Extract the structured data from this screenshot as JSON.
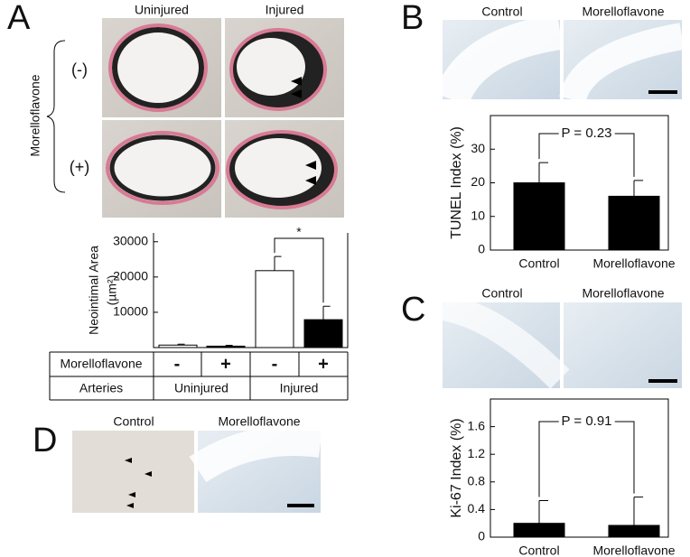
{
  "panel_labels": [
    "A",
    "B",
    "C",
    "D"
  ],
  "panel_a": {
    "columns": [
      "Uninjured",
      "Injured"
    ],
    "row_title": "Morelloflavone",
    "rows": [
      "(-)",
      "(+)"
    ],
    "table": {
      "rows": [
        [
          "Morelloflavone",
          "-",
          "+",
          "-",
          "+"
        ],
        [
          "Arteries",
          "Uninjured",
          "Injured"
        ]
      ]
    }
  },
  "panel_b": {
    "columns": [
      "Control",
      "Morelloflavone"
    ]
  },
  "panel_c": {
    "columns": [
      "Control",
      "Morelloflavone"
    ]
  },
  "panel_d": {
    "columns": [
      "Control",
      "Morelloflavone"
    ]
  },
  "chart_data": [
    {
      "type": "bar",
      "y_label": [
        "Neointimal Area",
        "(µm²)"
      ],
      "categories": [
        null,
        null,
        null,
        null
      ],
      "values": [
        700,
        400,
        21800,
        7900
      ],
      "errors": [
        250,
        250,
        4000,
        3800
      ],
      "colors": [
        "#ffffff",
        "#000000",
        "#ffffff",
        "#000000"
      ],
      "ylim": [
        0,
        32500
      ],
      "yticks": [
        10000,
        20000,
        30000
      ],
      "annotation": "*"
    },
    {
      "type": "bar",
      "y_label": "TUNEL Index (%)",
      "categories": [
        "Control",
        "Morelloflavone"
      ],
      "values": [
        20,
        16
      ],
      "errors": [
        6,
        4.7
      ],
      "color": "#000000",
      "ylim": [
        0,
        40
      ],
      "yticks": [
        0,
        10,
        20,
        30
      ],
      "annotation": "P = 0.23"
    },
    {
      "type": "bar",
      "y_label": "Ki-67 Index (%)",
      "categories": [
        "Control",
        "Morelloflavone"
      ],
      "values": [
        0.2,
        0.17
      ],
      "errors": [
        0.33,
        0.41
      ],
      "color": "#000000",
      "ylim": [
        0,
        2
      ],
      "yticks": [
        0,
        0.4,
        0.8,
        1.2,
        1.6
      ],
      "annotation": "P = 0.91"
    }
  ]
}
